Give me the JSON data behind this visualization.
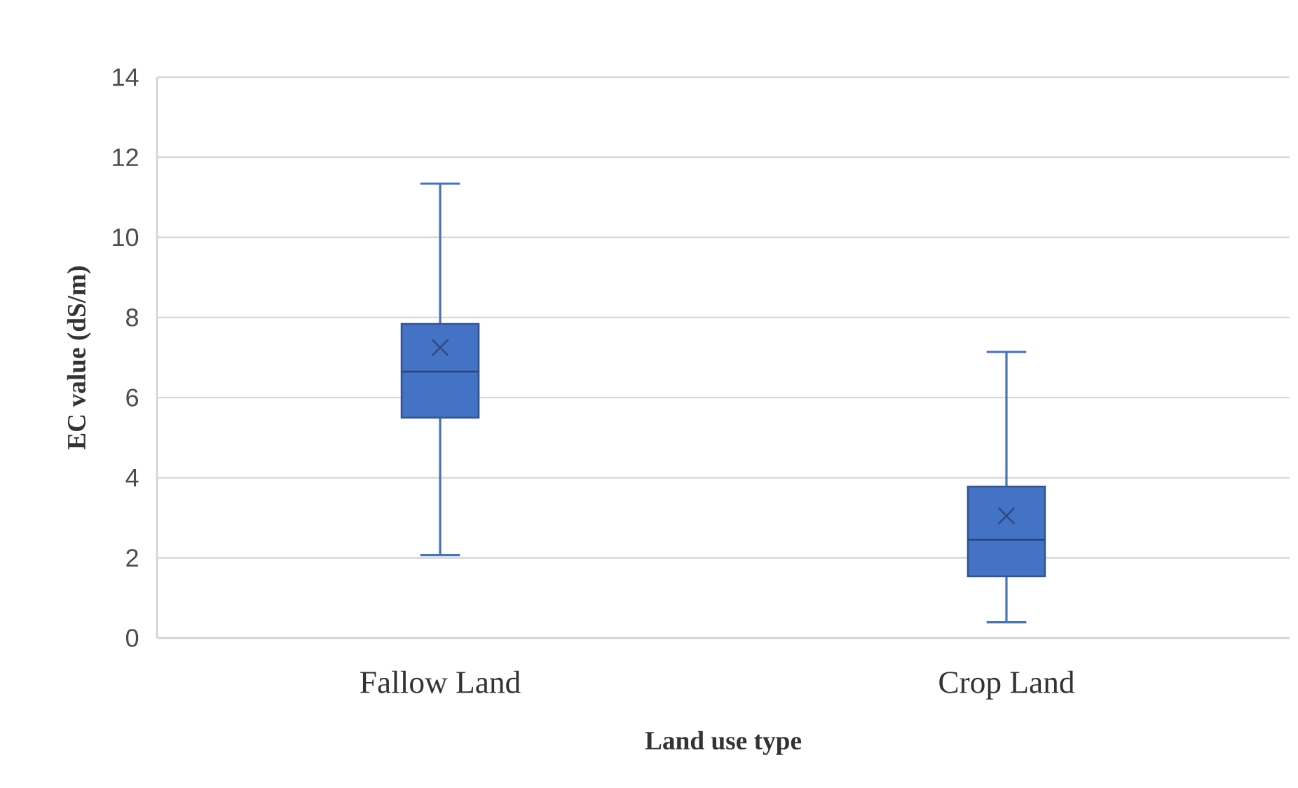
{
  "chart_data": {
    "type": "box",
    "xlabel": "Land use type",
    "ylabel": "EC value (dS/m)",
    "categories": [
      "Fallow Land",
      "Crop Land"
    ],
    "color": "#4472c4",
    "boxes": [
      {
        "low": 2.07,
        "q1": 5.5,
        "median": 6.65,
        "q3": 7.84,
        "high": 11.34,
        "mean": 7.25
      },
      {
        "low": 0.39,
        "q1": 1.54,
        "median": 2.45,
        "q3": 3.78,
        "high": 7.14,
        "mean": 3.05
      }
    ],
    "ylim": [
      0,
      14
    ],
    "yticks": [
      0,
      2,
      4,
      6,
      8,
      10,
      12,
      14
    ],
    "grid": "y"
  }
}
